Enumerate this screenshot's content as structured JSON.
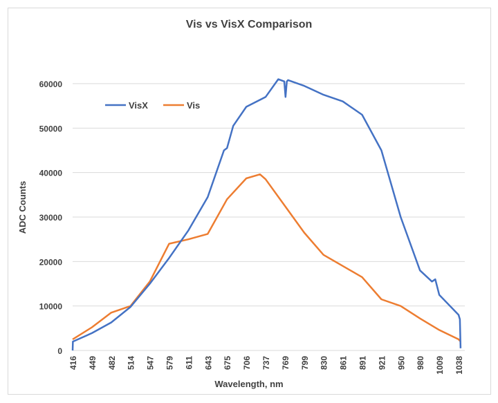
{
  "chart_data": {
    "type": "line",
    "title": "Vis vs VisX Comparison",
    "xlabel": "Wavelength, nm",
    "ylabel": "ADC Counts",
    "x_tick_labels": [
      "416",
      "449",
      "482",
      "514",
      "547",
      "579",
      "611",
      "643",
      "675",
      "706",
      "737",
      "769",
      "799",
      "830",
      "861",
      "891",
      "921",
      "950",
      "980",
      "1009",
      "1038"
    ],
    "y_ticks": [
      0,
      10000,
      20000,
      30000,
      40000,
      50000,
      60000
    ],
    "ylim": [
      0,
      60000
    ],
    "grid": "horizontal",
    "legend": "top-left",
    "series": [
      {
        "name": "VisX",
        "color": "#4472C4",
        "x": [
          416,
          416.5,
          449,
          482,
          514,
          547,
          579,
          611,
          643,
          670,
          675,
          685,
          706,
          737,
          758,
          768,
          770,
          772,
          774,
          799,
          830,
          861,
          891,
          921,
          950,
          980,
          998,
          1003,
          1009,
          1038,
          1040,
          1041
        ],
        "y": [
          0,
          2000,
          3900,
          6300,
          9800,
          15000,
          20800,
          27000,
          34500,
          45000,
          45500,
          50500,
          54800,
          57000,
          61000,
          60500,
          57000,
          60500,
          60800,
          59500,
          57500,
          56000,
          53000,
          45000,
          30000,
          18000,
          15500,
          16000,
          12500,
          8000,
          7000,
          500
        ]
      },
      {
        "name": "Vis",
        "color": "#ED7D31",
        "x": [
          416,
          449,
          482,
          514,
          547,
          579,
          611,
          643,
          675,
          706,
          728,
          737,
          769,
          799,
          830,
          861,
          891,
          921,
          950,
          980,
          1009,
          1038,
          1041
        ],
        "y": [
          2500,
          5200,
          8500,
          10000,
          15500,
          24000,
          25000,
          26200,
          34000,
          38700,
          39600,
          38500,
          32500,
          26500,
          21500,
          19000,
          16500,
          11500,
          10000,
          7200,
          4600,
          2500,
          2000
        ]
      }
    ]
  }
}
